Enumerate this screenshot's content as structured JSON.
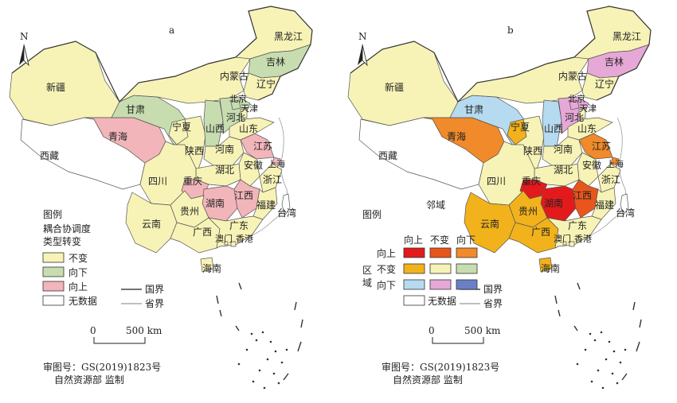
{
  "panels": [
    {
      "id": "a",
      "letter": "a",
      "north": "N",
      "provinces": {
        "heilongjiang": {
          "name": "黑龙江",
          "status": "不变"
        },
        "jilin": {
          "name": "吉林",
          "status": "向下"
        },
        "liaoning": {
          "name": "辽宁",
          "status": "不变"
        },
        "neimenggu": {
          "name": "内蒙古",
          "status": "不变"
        },
        "xinjiang": {
          "name": "新疆",
          "status": "不变"
        },
        "xizang": {
          "name": "西藏",
          "status": "无数据"
        },
        "qinghai": {
          "name": "青海",
          "status": "向上"
        },
        "gansu": {
          "name": "甘肃",
          "status": "向下"
        },
        "ningxia": {
          "name": "宁夏",
          "status": "不变"
        },
        "shaanxi": {
          "name": "陕西",
          "status": "不变"
        },
        "shanxi": {
          "name": "山西",
          "status": "向下"
        },
        "hebei": {
          "name": "河北",
          "status": "向下"
        },
        "beijing": {
          "name": "北京",
          "status": "向下"
        },
        "tianjin": {
          "name": "天津",
          "status": "不变"
        },
        "shandong": {
          "name": "山东",
          "status": "不变"
        },
        "henan": {
          "name": "河南",
          "status": "不变"
        },
        "jiangsu": {
          "name": "江苏",
          "status": "向上"
        },
        "shanghai": {
          "name": "上海",
          "status": "向上"
        },
        "anhui": {
          "name": "安徽",
          "status": "不变"
        },
        "zhejiang": {
          "name": "浙江",
          "status": "不变"
        },
        "hubei": {
          "name": "湖北",
          "status": "不变"
        },
        "sichuan": {
          "name": "四川",
          "status": "不变"
        },
        "chongqing": {
          "name": "重庆",
          "status": "向上"
        },
        "hunan": {
          "name": "湖南",
          "status": "向上"
        },
        "jiangxi": {
          "name": "江西",
          "status": "向上"
        },
        "fujian": {
          "name": "福建",
          "status": "不变"
        },
        "guizhou": {
          "name": "贵州",
          "status": "不变"
        },
        "yunnan": {
          "name": "云南",
          "status": "不变"
        },
        "guangxi": {
          "name": "广西",
          "status": "不变"
        },
        "guangdong": {
          "name": "广东",
          "status": "不变"
        },
        "xianggang": {
          "name": "香港",
          "status": "不变"
        },
        "aomen": {
          "name": "澳门",
          "status": "不变"
        },
        "hainan": {
          "name": "海南",
          "status": "不变"
        },
        "taiwan": {
          "name": "台湾",
          "status": "无数据"
        }
      },
      "legend": {
        "title": "图例",
        "subtitle_line1": "耦合协调度",
        "subtitle_line2": "类型转变",
        "items": [
          {
            "label": "不变",
            "color": "#f7f3b6"
          },
          {
            "label": "向下",
            "color": "#c7ddb0"
          },
          {
            "label": "向上",
            "color": "#f2b5ba"
          },
          {
            "label": "无数据",
            "color": "#ffffff"
          }
        ],
        "national_border": "国界",
        "provincial_border": "省界"
      },
      "scale": {
        "zero": "0",
        "label": "500 km"
      },
      "approval_line1": "审图号：GS(2019)1823号",
      "approval_line2": "自然资源部 监制"
    },
    {
      "id": "b",
      "letter": "b",
      "north": "N",
      "provinces": {
        "heilongjiang": {
          "name": "黑龙江",
          "status": "不变-不变"
        },
        "jilin": {
          "name": "吉林",
          "status": "向下-不变"
        },
        "liaoning": {
          "name": "辽宁",
          "status": "不变-不变"
        },
        "neimenggu": {
          "name": "内蒙古",
          "status": "不变-不变"
        },
        "xinjiang": {
          "name": "新疆",
          "status": "不变-不变"
        },
        "xizang": {
          "name": "西藏",
          "status": "无数据"
        },
        "qinghai": {
          "name": "青海",
          "status": "向上-向下"
        },
        "gansu": {
          "name": "甘肃",
          "status": "向下-向上"
        },
        "ningxia": {
          "name": "宁夏",
          "status": "不变-向上"
        },
        "shaanxi": {
          "name": "陕西",
          "status": "不变-不变"
        },
        "shanxi": {
          "name": "山西",
          "status": "向下-向上"
        },
        "hebei": {
          "name": "河北",
          "status": "向下-不变"
        },
        "beijing": {
          "name": "北京",
          "status": "向下-不变"
        },
        "tianjin": {
          "name": "天津",
          "status": "不变-不变"
        },
        "shandong": {
          "name": "山东",
          "status": "不变-不变"
        },
        "henan": {
          "name": "河南",
          "status": "不变-不变"
        },
        "jiangsu": {
          "name": "江苏",
          "status": "向上-向下"
        },
        "shanghai": {
          "name": "上海",
          "status": "向上-向下"
        },
        "anhui": {
          "name": "安徽",
          "status": "不变-不变"
        },
        "zhejiang": {
          "name": "浙江",
          "status": "不变-不变"
        },
        "hubei": {
          "name": "湖北",
          "status": "不变-不变"
        },
        "sichuan": {
          "name": "四川",
          "status": "不变-不变"
        },
        "chongqing": {
          "name": "重庆",
          "status": "向上-向上"
        },
        "hunan": {
          "name": "湖南",
          "status": "向上-向上"
        },
        "jiangxi": {
          "name": "江西",
          "status": "向上-不变"
        },
        "fujian": {
          "name": "福建",
          "status": "不变-不变"
        },
        "guizhou": {
          "name": "贵州",
          "status": "不变-向上"
        },
        "yunnan": {
          "name": "云南",
          "status": "不变-向上"
        },
        "guangxi": {
          "name": "广西",
          "status": "不变-向上"
        },
        "guangdong": {
          "name": "广东",
          "status": "不变-不变"
        },
        "xianggang": {
          "name": "香港",
          "status": "不变-不变"
        },
        "aomen": {
          "name": "澳门",
          "status": "不变-不变"
        },
        "hainan": {
          "name": "海南",
          "status": "不变-向上"
        },
        "taiwan": {
          "name": "台湾",
          "status": "无数据"
        }
      },
      "legend": {
        "title": "图例",
        "neighbor_label": "邻域",
        "region_label_1": "区",
        "region_label_2": "域",
        "col_headers": [
          "向上",
          "不变",
          "向下"
        ],
        "row_headers": [
          "向上",
          "不变",
          "向下"
        ],
        "matrix_colors": [
          [
            "#e31a1c",
            "#e8561c",
            "#f08a2a"
          ],
          [
            "#f2b21c",
            "#f7f3b6",
            "#c7ddb0"
          ],
          [
            "#b6daf0",
            "#e6a8d7",
            "#6b7fc6"
          ]
        ],
        "no_data": "无数据",
        "national_border": "国界",
        "provincial_border": "省界"
      },
      "scale": {
        "zero": "0",
        "label": "500 km"
      },
      "approval_line1": "审图号：GS(2019)1823号",
      "approval_line2": "自然资源部 监制"
    }
  ]
}
